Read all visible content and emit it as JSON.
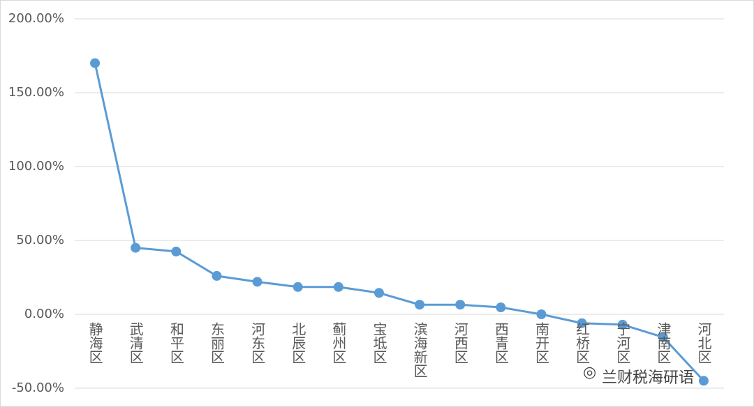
{
  "chart_data": {
    "type": "line",
    "categories": [
      "静海区",
      "武清区",
      "和平区",
      "东丽区",
      "河东区",
      "北辰区",
      "蓟州区",
      "宝坻区",
      "滨海新区",
      "河西区",
      "西青区",
      "南开区",
      "红桥区",
      "宁河区",
      "津南区",
      "河北区"
    ],
    "series": [
      {
        "color": "#5b9bd5",
        "values": [
          170,
          45,
          42.5,
          26,
          22,
          18.5,
          18.5,
          14.5,
          6.5,
          6.5,
          4.7,
          0,
          -6,
          -7,
          -15.5,
          -45
        ]
      }
    ],
    "ylim": [
      -50,
      200
    ],
    "yticks": [
      {
        "value": -50,
        "label": "-50.00%"
      },
      {
        "value": 0,
        "label": "0.00%"
      },
      {
        "value": 50,
        "label": "50.00%"
      },
      {
        "value": 100,
        "label": "100.00%"
      },
      {
        "value": 150,
        "label": "150.00%"
      },
      {
        "value": 200,
        "label": "200.00%"
      }
    ],
    "grid": true
  },
  "watermark": "兰财税海研语"
}
